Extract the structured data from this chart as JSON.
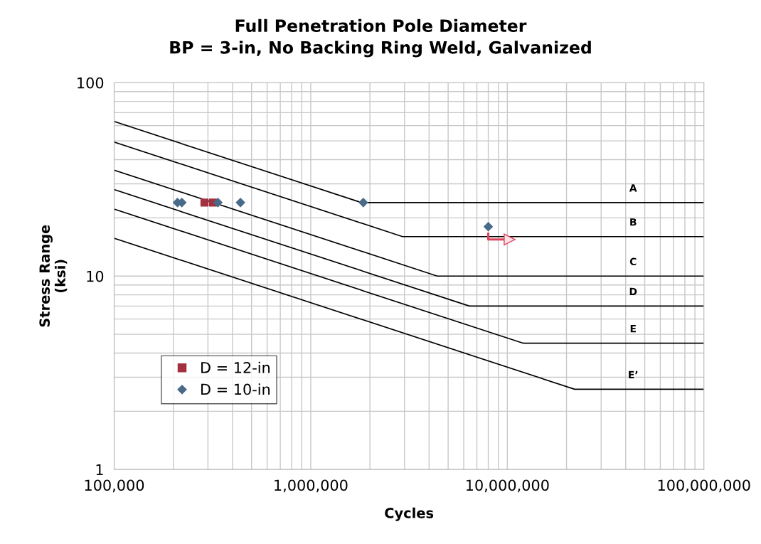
{
  "chart_data": {
    "type": "scatter",
    "title": "Full Penetration Pole Diameter",
    "subtitle": "BP = 3-in, No Backing Ring Weld, Galvanized",
    "xlabel": "Cycles",
    "ylabel": "Stress Range\n(ksi)",
    "log": "xy",
    "xlim": [
      100000,
      100000000
    ],
    "ylim": [
      1,
      100
    ],
    "xticks": [
      {
        "value": 100000,
        "label": "100,000"
      },
      {
        "value": 1000000,
        "label": "1,000,000"
      },
      {
        "value": 10000000,
        "label": "10,000,000"
      },
      {
        "value": 100000000,
        "label": "100,000,000"
      }
    ],
    "yticks": [
      1,
      10,
      100
    ],
    "grid": true,
    "legend": "lower left",
    "series": [
      {
        "name": "A",
        "type": "line",
        "color": "#000000",
        "marker": "none",
        "x": [
          100000,
          1810000,
          100000000
        ],
        "values": [
          63,
          24,
          24
        ]
      },
      {
        "name": "B",
        "type": "line",
        "color": "#000000",
        "marker": "none",
        "x": [
          100000,
          2930000,
          100000000
        ],
        "values": [
          49.3,
          16,
          16
        ]
      },
      {
        "name": "C",
        "type": "line",
        "color": "#000000",
        "marker": "none",
        "x": [
          100000,
          4400000,
          100000000
        ],
        "values": [
          35.3,
          10,
          10
        ]
      },
      {
        "name": "D",
        "type": "line",
        "color": "#000000",
        "marker": "none",
        "x": [
          100000,
          6410000,
          100000000
        ],
        "values": [
          28,
          7,
          7
        ]
      },
      {
        "name": "E",
        "type": "line",
        "color": "#000000",
        "marker": "none",
        "x": [
          100000,
          12000000,
          100000000
        ],
        "values": [
          22.2,
          4.5,
          4.5
        ]
      },
      {
        "name": "E’",
        "type": "line",
        "color": "#000000",
        "marker": "none",
        "x": [
          100000,
          22000000,
          100000000
        ],
        "values": [
          15.7,
          2.6,
          2.6
        ]
      },
      {
        "name": "D = 12-in",
        "color": "#a3303f",
        "marker": "square",
        "x": [
          288000,
          318000
        ],
        "values": [
          24,
          24
        ]
      },
      {
        "name": "D = 10-in",
        "color": "#4a6a8a",
        "marker": "diamond",
        "x": [
          210000,
          221000,
          337000,
          439000,
          1850000,
          8000000
        ],
        "values": [
          24,
          24,
          24,
          24,
          24,
          18
        ]
      }
    ]
  }
}
